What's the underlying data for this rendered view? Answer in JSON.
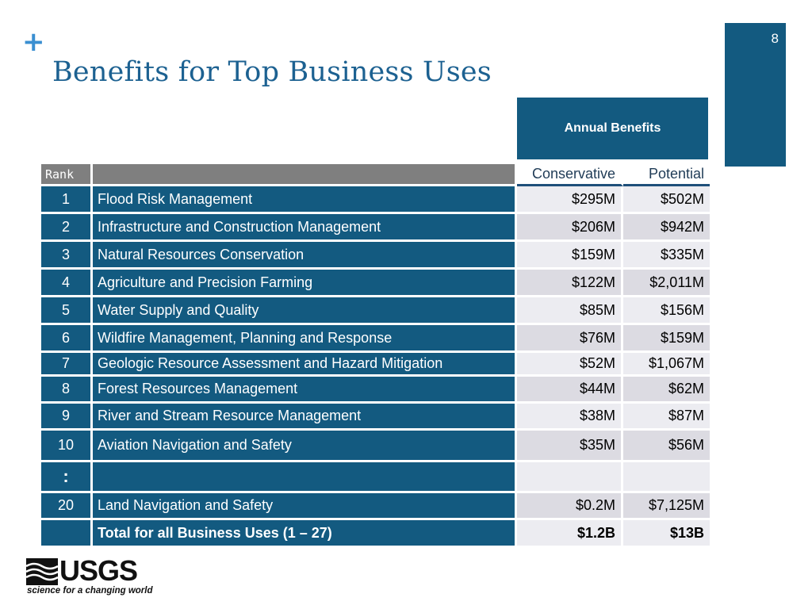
{
  "slide": {
    "plus_symbol": "+",
    "title": "Benefits for Top Business Uses",
    "number": "8"
  },
  "table": {
    "group_header": "Annual Benefits",
    "columns": {
      "rank": "Rank",
      "use": "",
      "conservative": "Conservative",
      "potential": "Potential"
    },
    "rows": [
      {
        "rank": "1",
        "use": "Flood Risk Management",
        "conservative": "$295M",
        "potential": "$502M"
      },
      {
        "rank": "2",
        "use": "Infrastructure and Construction Management",
        "conservative": "$206M",
        "potential": "$942M"
      },
      {
        "rank": "3",
        "use": "Natural Resources Conservation",
        "conservative": "$159M",
        "potential": "$335M"
      },
      {
        "rank": "4",
        "use": "Agriculture and Precision Farming",
        "conservative": "$122M",
        "potential": "$2,011M"
      },
      {
        "rank": "5",
        "use": "Water Supply and Quality",
        "conservative": "$85M",
        "potential": "$156M"
      },
      {
        "rank": "6",
        "use": "Wildfire Management, Planning and Response",
        "conservative": "$76M",
        "potential": "$159M"
      },
      {
        "rank": "7",
        "use": "Geologic Resource Assessment and Hazard Mitigation",
        "conservative": "$52M",
        "potential": "$1,067M"
      },
      {
        "rank": "8",
        "use": "Forest Resources Management",
        "conservative": "$44M",
        "potential": "$62M"
      },
      {
        "rank": "9",
        "use": "River and Stream Resource Management",
        "conservative": "$38M",
        "potential": "$87M"
      },
      {
        "rank": "10",
        "use": "Aviation Navigation and Safety",
        "conservative": "$35M",
        "potential": "$56M"
      },
      {
        "rank": ":",
        "use": "",
        "conservative": "",
        "potential": ""
      },
      {
        "rank": "20",
        "use": "Land Navigation and Safety",
        "conservative": "$0.2M",
        "potential": "$7,125M"
      }
    ],
    "total": {
      "rank": "",
      "use": "Total for all Business Uses (1 – 27)",
      "conservative": "$1.2B",
      "potential": "$13B"
    }
  },
  "logo": {
    "name": "USGS",
    "tagline": "science for a changing world"
  }
}
